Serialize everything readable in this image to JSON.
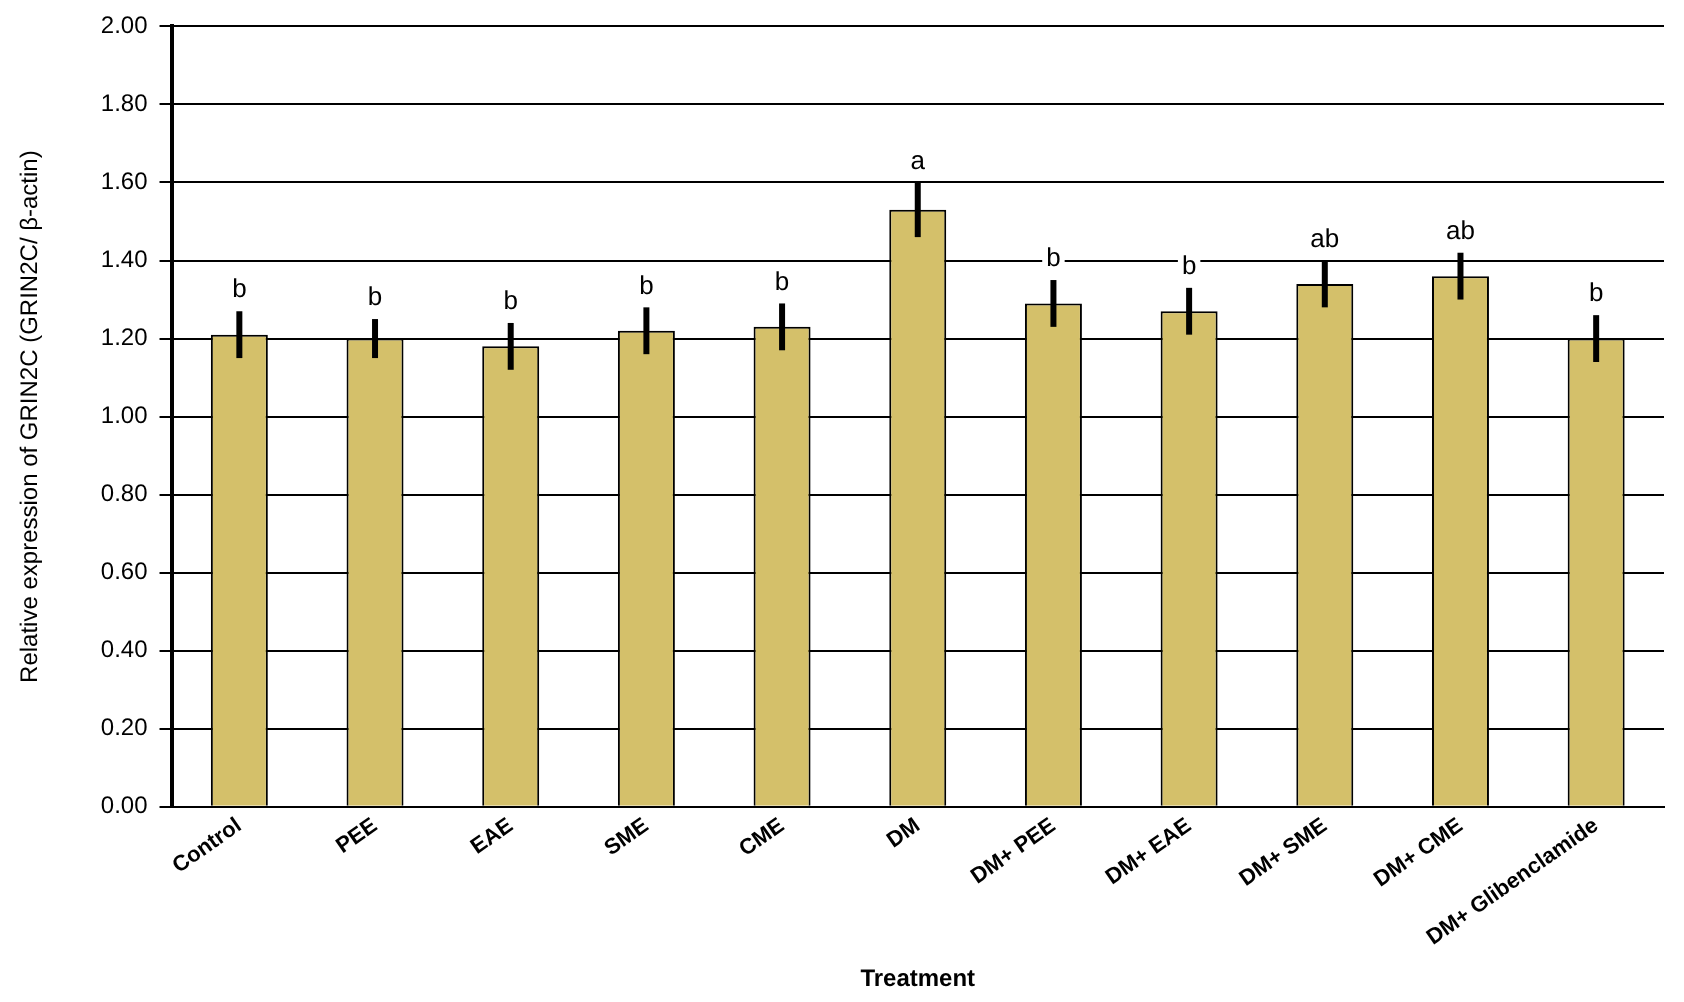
{
  "chart_data": {
    "type": "bar",
    "xlabel": "Treatment",
    "ylabel": "Relative expression of GRIN2C (GRIN2C/ β-actin)",
    "categories": [
      "Control",
      "PEE",
      "EAE",
      "SME",
      "CME",
      "DM",
      "DM+ PEE",
      "DM+ EAE",
      "DM+ SME",
      "DM+ CME",
      "DM+ Glibenclamide"
    ],
    "values": [
      1.21,
      1.2,
      1.18,
      1.22,
      1.23,
      1.53,
      1.29,
      1.27,
      1.34,
      1.36,
      1.2
    ],
    "errors": [
      0.06,
      0.05,
      0.06,
      0.06,
      0.06,
      0.07,
      0.06,
      0.06,
      0.06,
      0.06,
      0.06
    ],
    "color": "#d4c06a",
    "ylim": [
      0,
      2
    ],
    "yticks": [
      {
        "value": 0,
        "label": "0.00"
      },
      {
        "value": 0.2,
        "label": "0.20"
      },
      {
        "value": 0.4,
        "label": "0.40"
      },
      {
        "value": 0.6,
        "label": "0.60"
      },
      {
        "value": 0.8,
        "label": "0.80"
      },
      {
        "value": 1,
        "label": "1.00"
      },
      {
        "value": 1.2,
        "label": "1.20"
      },
      {
        "value": 1.4,
        "label": "1.40"
      },
      {
        "value": 1.6,
        "label": "1.60"
      },
      {
        "value": 1.8,
        "label": "1.80"
      },
      {
        "value": 2,
        "label": "2.00"
      }
    ],
    "grid": "y",
    "legend": false,
    "annotations": [
      {
        "text": "b",
        "x": "Control",
        "y": 1.27
      },
      {
        "text": "b",
        "x": "PEE",
        "y": 1.25
      },
      {
        "text": "b",
        "x": "EAE",
        "y": 1.24
      },
      {
        "text": "b",
        "x": "SME",
        "y": 1.28
      },
      {
        "text": "b",
        "x": "CME",
        "y": 1.29
      },
      {
        "text": "a",
        "x": "DM",
        "y": 1.6
      },
      {
        "text": "b",
        "x": "DM+ PEE",
        "y": 1.35
      },
      {
        "text": "b",
        "x": "DM+ EAE",
        "y": 1.33
      },
      {
        "text": "ab",
        "x": "DM+ SME",
        "y": 1.4
      },
      {
        "text": "ab",
        "x": "DM+ CME",
        "y": 1.42
      },
      {
        "text": "b",
        "x": "DM+ Glibenclamide",
        "y": 1.26
      }
    ]
  }
}
